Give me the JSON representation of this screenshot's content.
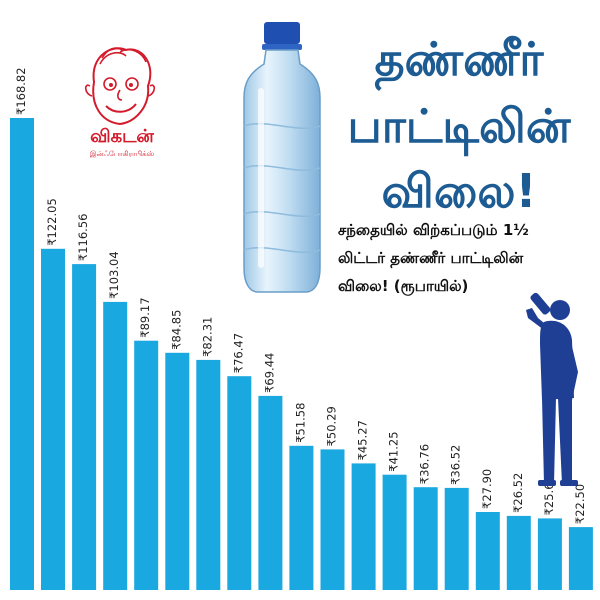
{
  "title": {
    "line1": "தண்ணீர்",
    "line2": "பாட்டிலின்",
    "line3": "விலை!"
  },
  "subtitle": {
    "line1": "சந்தையில் விற்கப்படும் 1½",
    "line2": "லிட்டர் தண்ணீர் பாட்டிலின்",
    "line3": "விலை! (ரூபாயில்)"
  },
  "logo": {
    "text": "விகடன்",
    "subtext": "இன்ஃபோகிராபிக்ஸ்"
  },
  "colors": {
    "bar": "#1aa8e0",
    "title": "#1d5b93",
    "person": "#1f3f95",
    "logo": "#d41b2c"
  },
  "icons": [
    "water-bottle-icon",
    "drinking-person-icon",
    "vikatan-logo-icon"
  ],
  "chart_data": {
    "type": "bar",
    "currency_symbol": "₹",
    "values": [
      168.82,
      122.05,
      116.56,
      103.04,
      89.17,
      84.85,
      82.31,
      76.47,
      69.44,
      51.58,
      50.29,
      45.27,
      41.25,
      36.76,
      36.52,
      27.9,
      26.52,
      25.61,
      22.5
    ],
    "labels": [
      "₹168.82",
      "₹122.05",
      "₹116.56",
      "₹103.04",
      "₹89.17",
      "₹84.85",
      "₹82.31",
      "₹76.47",
      "₹69.44",
      "₹51.58",
      "₹50.29",
      "₹45.27",
      "₹41.25",
      "₹36.76",
      "₹36.52",
      "₹27.90",
      "₹26.52",
      "₹25.61",
      "₹22.50"
    ],
    "ylim": [
      0,
      168.82
    ],
    "grid": false,
    "axes_visible": false
  }
}
